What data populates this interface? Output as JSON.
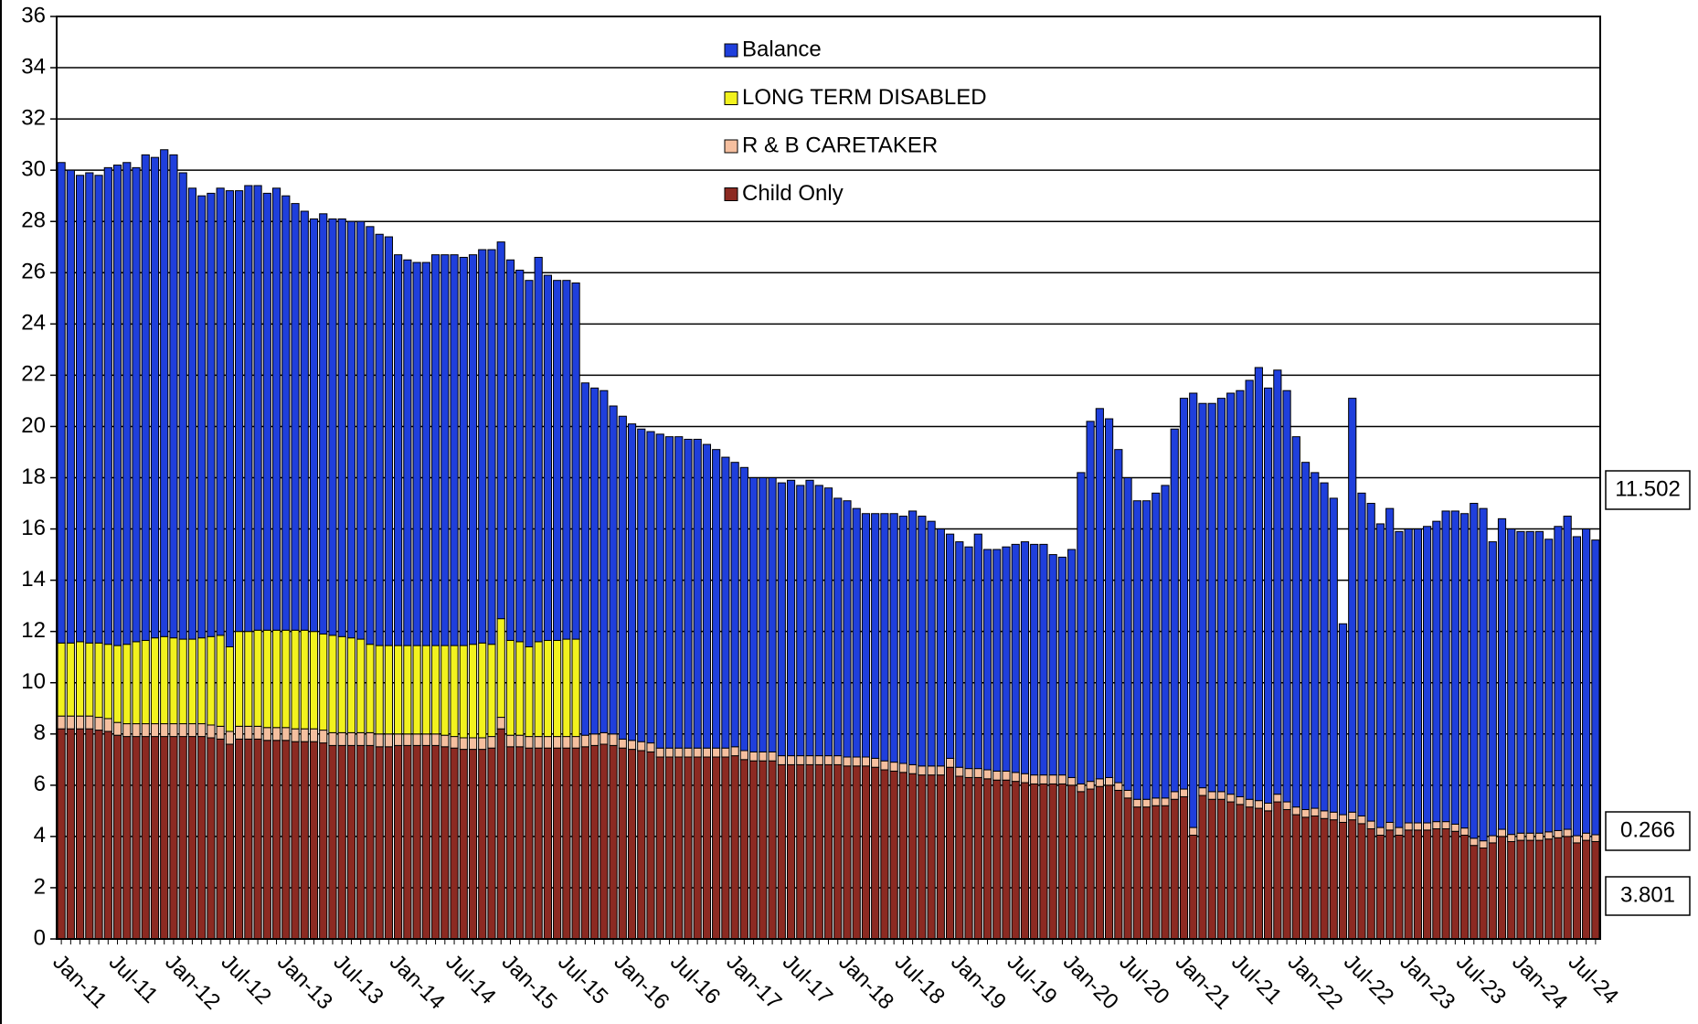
{
  "chart_data": {
    "type": "stacked_bar",
    "categories": [
      "Jan-11",
      null,
      null,
      null,
      null,
      null,
      "Jul-11",
      null,
      null,
      null,
      null,
      null,
      "Jan-12",
      null,
      null,
      null,
      null,
      null,
      "Jul-12",
      null,
      null,
      null,
      null,
      null,
      "Jan-13",
      null,
      null,
      null,
      null,
      null,
      "Jul-13",
      null,
      null,
      null,
      null,
      null,
      "Jan-14",
      null,
      null,
      null,
      null,
      null,
      "Jul-14",
      null,
      null,
      null,
      null,
      null,
      "Jan-15",
      null,
      null,
      null,
      null,
      null,
      "Jul-15",
      null,
      null,
      null,
      null,
      null,
      "Jan-16",
      null,
      null,
      null,
      null,
      null,
      "Jul-16",
      null,
      null,
      null,
      null,
      null,
      "Jan-17",
      null,
      null,
      null,
      null,
      null,
      "Jul-17",
      null,
      null,
      null,
      null,
      null,
      "Jan-18",
      null,
      null,
      null,
      null,
      null,
      "Jul-18",
      null,
      null,
      null,
      null,
      null,
      "Jan-19",
      null,
      null,
      null,
      null,
      null,
      "Jul-19",
      null,
      null,
      null,
      null,
      null,
      "Jan-20",
      null,
      null,
      null,
      null,
      null,
      "Jul-20",
      null,
      null,
      null,
      null,
      null,
      "Jan-21",
      null,
      null,
      null,
      null,
      null,
      "Jul-21",
      null,
      null,
      null,
      null,
      null,
      "Jan-22",
      null,
      null,
      null,
      null,
      null,
      "Jul-22",
      null,
      null,
      null,
      null,
      null,
      "Jan-23",
      null,
      null,
      null,
      null,
      null,
      "Jul-23",
      null,
      null,
      null,
      null,
      null,
      "Jan-24",
      null,
      null,
      null,
      null,
      null,
      "Jul-24",
      null,
      null
    ],
    "series": [
      {
        "name": "Child Only",
        "color": "#8c2a22",
        "values": [
          8.2,
          8.2,
          8.2,
          8.2,
          8.15,
          8.1,
          7.95,
          7.9,
          7.9,
          7.9,
          7.9,
          7.9,
          7.9,
          7.9,
          7.9,
          7.9,
          7.85,
          7.8,
          7.6,
          7.8,
          7.8,
          7.8,
          7.75,
          7.75,
          7.75,
          7.7,
          7.7,
          7.7,
          7.65,
          7.55,
          7.55,
          7.55,
          7.55,
          7.55,
          7.5,
          7.5,
          7.55,
          7.55,
          7.55,
          7.55,
          7.55,
          7.5,
          7.45,
          7.4,
          7.4,
          7.4,
          7.45,
          8.2,
          7.5,
          7.5,
          7.45,
          7.45,
          7.45,
          7.45,
          7.45,
          7.45,
          7.5,
          7.55,
          7.6,
          7.55,
          7.45,
          7.4,
          7.35,
          7.3,
          7.1,
          7.1,
          7.1,
          7.1,
          7.1,
          7.1,
          7.1,
          7.1,
          7.15,
          7.0,
          6.95,
          6.95,
          6.95,
          6.8,
          6.8,
          6.8,
          6.8,
          6.8,
          6.8,
          6.8,
          6.75,
          6.75,
          6.75,
          6.7,
          6.6,
          6.55,
          6.5,
          6.45,
          6.4,
          6.4,
          6.4,
          6.7,
          6.35,
          6.3,
          6.3,
          6.25,
          6.2,
          6.2,
          6.15,
          6.1,
          6.05,
          6.05,
          6.05,
          6.05,
          6.0,
          5.75,
          5.85,
          5.95,
          6.0,
          5.8,
          5.5,
          5.15,
          5.15,
          5.2,
          5.2,
          5.45,
          5.55,
          4.05,
          5.6,
          5.45,
          5.45,
          5.35,
          5.25,
          5.15,
          5.1,
          5.0,
          5.35,
          5.05,
          4.85,
          4.75,
          4.8,
          4.7,
          4.65,
          4.55,
          4.65,
          4.5,
          4.3,
          4.05,
          4.25,
          4.05,
          4.25,
          4.25,
          4.25,
          4.3,
          4.3,
          4.2,
          4.05,
          3.65,
          3.55,
          3.75,
          4.0,
          3.8,
          3.85,
          3.85,
          3.85,
          3.9,
          3.95,
          4.0,
          3.75,
          3.85,
          3.801
        ]
      },
      {
        "name": "R & B CARETAKER",
        "color": "#f5bf9f",
        "values": [
          0.5,
          0.5,
          0.5,
          0.5,
          0.5,
          0.5,
          0.5,
          0.5,
          0.5,
          0.5,
          0.5,
          0.5,
          0.5,
          0.5,
          0.5,
          0.5,
          0.5,
          0.5,
          0.5,
          0.5,
          0.5,
          0.5,
          0.5,
          0.5,
          0.5,
          0.5,
          0.5,
          0.5,
          0.5,
          0.5,
          0.5,
          0.5,
          0.5,
          0.5,
          0.5,
          0.5,
          0.45,
          0.45,
          0.45,
          0.45,
          0.45,
          0.45,
          0.45,
          0.45,
          0.45,
          0.45,
          0.45,
          0.45,
          0.45,
          0.45,
          0.45,
          0.45,
          0.45,
          0.45,
          0.45,
          0.45,
          0.45,
          0.45,
          0.45,
          0.45,
          0.35,
          0.35,
          0.35,
          0.35,
          0.35,
          0.35,
          0.35,
          0.35,
          0.35,
          0.35,
          0.35,
          0.35,
          0.35,
          0.35,
          0.35,
          0.35,
          0.35,
          0.35,
          0.35,
          0.35,
          0.35,
          0.35,
          0.35,
          0.35,
          0.35,
          0.35,
          0.35,
          0.35,
          0.35,
          0.35,
          0.35,
          0.35,
          0.35,
          0.35,
          0.35,
          0.35,
          0.35,
          0.35,
          0.35,
          0.35,
          0.35,
          0.35,
          0.35,
          0.35,
          0.35,
          0.35,
          0.35,
          0.35,
          0.3,
          0.3,
          0.3,
          0.3,
          0.3,
          0.3,
          0.3,
          0.3,
          0.3,
          0.3,
          0.3,
          0.3,
          0.3,
          0.3,
          0.3,
          0.3,
          0.3,
          0.3,
          0.3,
          0.3,
          0.3,
          0.3,
          0.3,
          0.3,
          0.3,
          0.3,
          0.3,
          0.3,
          0.3,
          0.3,
          0.3,
          0.3,
          0.3,
          0.3,
          0.3,
          0.3,
          0.28,
          0.28,
          0.28,
          0.28,
          0.28,
          0.28,
          0.28,
          0.28,
          0.28,
          0.28,
          0.28,
          0.28,
          0.28,
          0.28,
          0.28,
          0.28,
          0.28,
          0.28,
          0.28,
          0.28,
          0.266
        ]
      },
      {
        "name": "LONG TERM DISABLED",
        "color": "#f2f21e",
        "values": [
          2.85,
          2.85,
          2.9,
          2.85,
          2.9,
          2.9,
          3.0,
          3.1,
          3.2,
          3.25,
          3.35,
          3.4,
          3.35,
          3.3,
          3.3,
          3.35,
          3.45,
          3.55,
          3.3,
          3.7,
          3.7,
          3.75,
          3.8,
          3.8,
          3.8,
          3.85,
          3.85,
          3.8,
          3.75,
          3.8,
          3.75,
          3.7,
          3.65,
          3.45,
          3.45,
          3.45,
          3.45,
          3.45,
          3.45,
          3.45,
          3.45,
          3.5,
          3.55,
          3.6,
          3.65,
          3.7,
          3.6,
          3.85,
          3.7,
          3.65,
          3.5,
          3.7,
          3.75,
          3.75,
          3.8,
          3.8,
          0,
          0,
          0,
          0,
          0,
          0,
          0,
          0,
          0,
          0,
          0,
          0,
          0,
          0,
          0,
          0,
          0,
          0,
          0,
          0,
          0,
          0,
          0,
          0,
          0,
          0,
          0,
          0,
          0,
          0,
          0,
          0,
          0,
          0,
          0,
          0,
          0,
          0,
          0,
          0,
          0,
          0,
          0,
          0,
          0,
          0,
          0,
          0,
          0,
          0,
          0,
          0,
          0,
          0,
          0,
          0,
          0,
          0,
          0,
          0,
          0,
          0,
          0,
          0,
          0,
          0,
          0,
          0,
          0,
          0,
          0,
          0,
          0,
          0,
          0,
          0,
          0,
          0,
          0,
          0,
          0,
          0,
          0,
          0,
          0,
          0,
          0,
          0,
          0,
          0,
          0,
          0,
          0,
          0,
          0,
          0,
          0,
          0,
          0,
          0,
          0,
          0,
          0,
          0,
          0,
          0,
          0,
          0,
          0
        ]
      },
      {
        "name": "Balance",
        "color": "#1f3fdc",
        "values": [
          18.75,
          18.45,
          18.2,
          18.35,
          18.25,
          18.6,
          18.75,
          18.8,
          18.5,
          18.95,
          18.75,
          19.0,
          18.85,
          18.2,
          17.6,
          17.25,
          17.3,
          17.45,
          17.8,
          17.2,
          17.4,
          17.35,
          17.05,
          17.25,
          16.95,
          16.65,
          16.35,
          16.1,
          16.4,
          16.25,
          16.3,
          16.25,
          16.3,
          16.3,
          16.05,
          15.95,
          15.25,
          15.05,
          14.95,
          14.95,
          15.25,
          15.25,
          15.25,
          15.15,
          15.2,
          15.35,
          15.4,
          14.7,
          14.85,
          14.5,
          14.3,
          15.0,
          14.25,
          14.05,
          14.0,
          13.9,
          13.75,
          13.5,
          13.35,
          12.8,
          12.6,
          12.35,
          12.2,
          12.15,
          12.25,
          12.15,
          12.15,
          12.05,
          12.05,
          11.85,
          11.65,
          11.35,
          11.1,
          11.05,
          10.7,
          10.7,
          10.7,
          10.65,
          10.75,
          10.55,
          10.75,
          10.55,
          10.45,
          10.05,
          10.0,
          9.7,
          9.5,
          9.55,
          9.65,
          9.7,
          9.65,
          9.9,
          9.75,
          9.55,
          9.25,
          8.75,
          8.8,
          8.65,
          9.15,
          8.6,
          8.65,
          8.75,
          8.9,
          9.05,
          9.0,
          9.0,
          8.6,
          8.5,
          8.9,
          12.15,
          14.05,
          14.45,
          14.0,
          13.0,
          12.2,
          11.65,
          11.65,
          11.9,
          12.2,
          14.15,
          15.25,
          16.95,
          15.0,
          15.15,
          15.35,
          15.65,
          15.85,
          16.35,
          16.9,
          16.2,
          16.55,
          16.05,
          14.45,
          13.55,
          13.1,
          12.8,
          12.25,
          7.45,
          16.15,
          12.6,
          12.4,
          11.85,
          12.25,
          11.55,
          11.47,
          11.47,
          11.57,
          11.72,
          12.12,
          12.22,
          12.27,
          13.07,
          12.97,
          11.47,
          12.12,
          11.92,
          11.77,
          11.77,
          11.77,
          11.42,
          11.87,
          12.22,
          11.67,
          11.87,
          11.502
        ]
      }
    ],
    "ylim": [
      0,
      36
    ],
    "yticks": [
      0,
      2,
      4,
      6,
      8,
      10,
      12,
      14,
      16,
      18,
      20,
      22,
      24,
      26,
      28,
      30,
      32,
      34,
      36
    ],
    "grid": true,
    "legend": "top"
  }
}
